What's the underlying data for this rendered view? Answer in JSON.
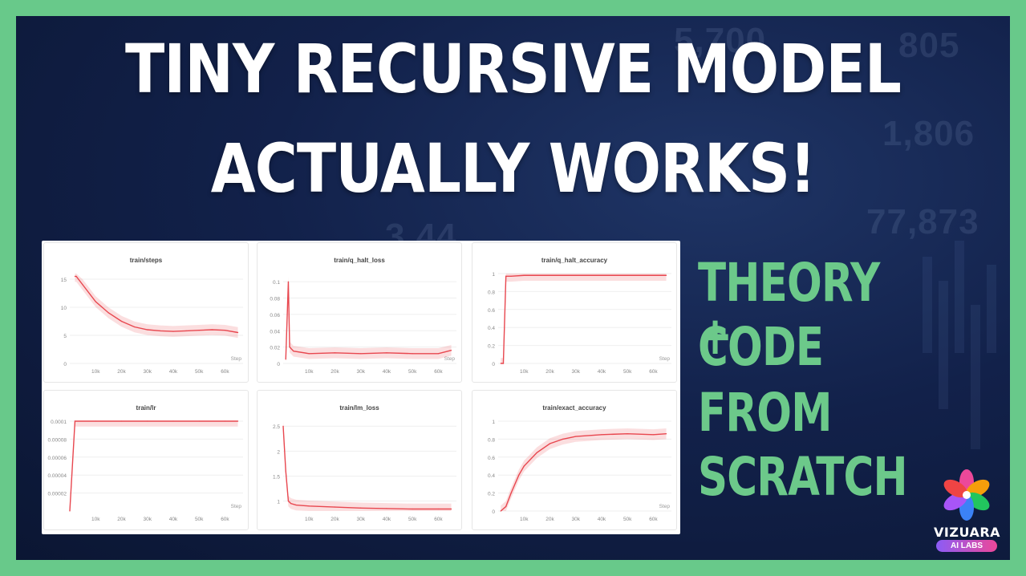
{
  "headline": {
    "line1": "TINY RECURSIVE MODEL",
    "line2": "ACTUALLY WORKS!"
  },
  "side_text": [
    "THEORY +",
    "CODE",
    "FROM",
    "SCRATCH"
  ],
  "background_numbers": [
    "5,700",
    "805",
    "1,806",
    "77,873",
    "3,44"
  ],
  "brand": {
    "name": "VIZUARA",
    "tagline": "AI LABS"
  },
  "colors": {
    "border": "#68c98a",
    "accent_green": "#6cc98a",
    "series": "#e8474f",
    "headline": "#ffffff"
  },
  "chart_data": [
    {
      "type": "line",
      "title": "train/steps",
      "xlabel": "Step",
      "x_ticks": [
        "10k",
        "20k",
        "30k",
        "40k",
        "50k",
        "60k"
      ],
      "y_ticks": [
        "0",
        "5",
        "10",
        "15"
      ],
      "ylim": [
        0,
        16
      ],
      "xlim": [
        0,
        67000
      ],
      "grid": true,
      "x": [
        2000,
        2500,
        5000,
        10000,
        15000,
        20000,
        25000,
        30000,
        35000,
        40000,
        45000,
        50000,
        55000,
        60000,
        65000
      ],
      "y": [
        15.5,
        15.5,
        14,
        11,
        9,
        7.5,
        6.5,
        6,
        5.8,
        5.7,
        5.8,
        5.9,
        6,
        5.9,
        5.5
      ]
    },
    {
      "type": "line",
      "title": "train/q_halt_loss",
      "xlabel": "Step",
      "x_ticks": [
        "10k",
        "20k",
        "30k",
        "40k",
        "50k",
        "60k"
      ],
      "y_ticks": [
        "0",
        "0.02",
        "0.04",
        "0.06",
        "0.08",
        "0.1"
      ],
      "ylim": [
        0,
        0.11
      ],
      "xlim": [
        0,
        67000
      ],
      "grid": true,
      "x": [
        1000,
        2000,
        2500,
        4000,
        10000,
        20000,
        30000,
        40000,
        50000,
        60000,
        65000
      ],
      "y": [
        0.005,
        0.1,
        0.02,
        0.015,
        0.012,
        0.013,
        0.012,
        0.013,
        0.012,
        0.012,
        0.016
      ]
    },
    {
      "type": "line",
      "title": "train/q_halt_accuracy",
      "xlabel": "Step",
      "x_ticks": [
        "10k",
        "20k",
        "30k",
        "40k",
        "50k",
        "60k"
      ],
      "y_ticks": [
        "0",
        "0.2",
        "0.4",
        "0.6",
        "0.8",
        "1"
      ],
      "ylim": [
        0,
        1
      ],
      "xlim": [
        0,
        67000
      ],
      "grid": true,
      "x": [
        1000,
        2000,
        3000,
        5000,
        10000,
        20000,
        30000,
        40000,
        50000,
        60000,
        65000
      ],
      "y": [
        0,
        0,
        0.97,
        0.97,
        0.98,
        0.98,
        0.98,
        0.98,
        0.98,
        0.98,
        0.98
      ]
    },
    {
      "type": "line",
      "title": "train/lr",
      "xlabel": "Step",
      "x_ticks": [
        "10k",
        "20k",
        "30k",
        "40k",
        "50k",
        "60k"
      ],
      "y_ticks": [
        "0.00002",
        "0.00004",
        "0.00006",
        "0.00008",
        "0.0001"
      ],
      "ylim": [
        0,
        0.0001
      ],
      "xlim": [
        0,
        67000
      ],
      "grid": true,
      "x": [
        0,
        2000,
        10000,
        20000,
        30000,
        40000,
        50000,
        60000,
        65000
      ],
      "y": [
        0,
        0.0001,
        0.0001,
        0.0001,
        0.0001,
        0.0001,
        0.0001,
        0.0001,
        0.0001
      ]
    },
    {
      "type": "line",
      "title": "train/lm_loss",
      "xlabel": "",
      "x_ticks": [
        "10k",
        "20k",
        "30k",
        "40k",
        "50k",
        "60k"
      ],
      "y_ticks": [
        "1",
        "1.5",
        "2",
        "2.5"
      ],
      "ylim": [
        0.8,
        2.6
      ],
      "xlim": [
        0,
        67000
      ],
      "grid": true,
      "x": [
        0,
        1000,
        2000,
        3000,
        5000,
        10000,
        20000,
        30000,
        40000,
        50000,
        60000,
        65000
      ],
      "y": [
        2.5,
        1.6,
        1.0,
        0.95,
        0.92,
        0.9,
        0.88,
        0.86,
        0.85,
        0.84,
        0.84,
        0.84
      ]
    },
    {
      "type": "line",
      "title": "train/exact_accuracy",
      "xlabel": "Step",
      "x_ticks": [
        "10k",
        "20k",
        "30k",
        "40k",
        "50k",
        "60k"
      ],
      "y_ticks": [
        "0",
        "0.2",
        "0.4",
        "0.6",
        "0.8",
        "1"
      ],
      "ylim": [
        0,
        1
      ],
      "xlim": [
        0,
        67000
      ],
      "grid": true,
      "x": [
        1000,
        3000,
        5000,
        8000,
        10000,
        15000,
        20000,
        25000,
        30000,
        40000,
        50000,
        60000,
        65000
      ],
      "y": [
        0,
        0.05,
        0.2,
        0.4,
        0.5,
        0.65,
        0.75,
        0.8,
        0.83,
        0.85,
        0.86,
        0.85,
        0.86
      ]
    }
  ]
}
